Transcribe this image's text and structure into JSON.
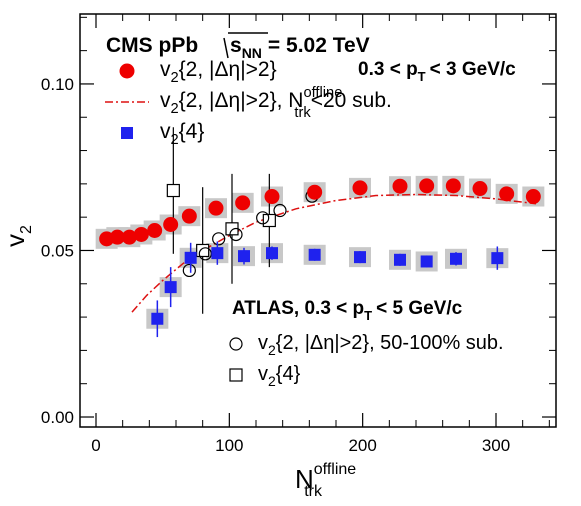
{
  "chart_data": {
    "type": "scatter",
    "title": "CMS pPb",
    "energy_label": "s",
    "energy_sub": "NN",
    "energy_value": "= 5.02 TeV",
    "pt_range_label": "0.3 < p",
    "pt_range_sub": "T",
    "pt_range_suffix": "< 3 GeV/c",
    "atlas_label": "ATLAS, 0.3 < p",
    "atlas_sub": "T",
    "atlas_suffix": "< 5 GeV/c",
    "xlabel": "N",
    "xlabel_sup": "offline",
    "xlabel_sub": "trk",
    "ylabel": "v",
    "ylabel_sub": "2",
    "xlim": [
      -12,
      345
    ],
    "ylim": [
      -0.003,
      0.121
    ],
    "x_ticks": [
      0,
      100,
      200,
      300
    ],
    "x_tick_labels": [
      "0",
      "100",
      "200",
      "300"
    ],
    "y_ticks": [
      0.0,
      0.05,
      0.1
    ],
    "y_tick_labels": [
      "0.00",
      "0.05",
      "0.10"
    ],
    "legend_cms": [
      {
        "marker": "circle-red",
        "text": "v",
        "sub": "2",
        "rest": "{2, |Δη|>2}"
      },
      {
        "marker": "dashdot-red",
        "text": "v",
        "sub": "2",
        "rest": "{2, |Δη|>2}, N",
        "rest_sup": "offline",
        "rest_sub": "trk",
        "rest_tail": "<20 sub."
      },
      {
        "marker": "square-blue",
        "text": "v",
        "sub": "2",
        "rest": "{4}"
      }
    ],
    "legend_atlas": [
      {
        "marker": "circle-open",
        "text": "v",
        "sub": "2",
        "rest": "{2, |Δη|>2}, 50-100% sub."
      },
      {
        "marker": "square-open",
        "text": "v",
        "sub": "2",
        "rest": "{4}"
      }
    ],
    "colors": {
      "cms_v22": "#ee0000",
      "cms_v24": "#1f22ee",
      "sys_box": "#c8c8c8",
      "sub_curve": "#dd1111"
    },
    "series": [
      {
        "name": "v2{2, |Δη|>2}",
        "marker": "circle-red",
        "points": [
          [
            8,
            0.0535
          ],
          [
            16,
            0.054
          ],
          [
            25,
            0.054
          ],
          [
            34,
            0.0548
          ],
          [
            44,
            0.056
          ],
          [
            56,
            0.0578
          ],
          [
            70,
            0.0603
          ],
          [
            90,
            0.0627
          ],
          [
            110,
            0.0643
          ],
          [
            132,
            0.0662
          ],
          [
            164,
            0.0675
          ],
          [
            198,
            0.0688
          ],
          [
            228,
            0.0693
          ],
          [
            248,
            0.0694
          ],
          [
            268,
            0.0694
          ],
          [
            288,
            0.0686
          ],
          [
            308,
            0.067
          ],
          [
            328,
            0.0662
          ]
        ]
      },
      {
        "name": "v2{4}",
        "marker": "square-blue",
        "points": [
          [
            46,
            0.0295,
            0.0055
          ],
          [
            56,
            0.039,
            0.006
          ],
          [
            71,
            0.0478,
            0.0045
          ],
          [
            91,
            0.0492,
            0.0035
          ],
          [
            111,
            0.0483,
            0.0025
          ],
          [
            132,
            0.0492,
            0.002
          ],
          [
            164,
            0.0487,
            0.0018
          ],
          [
            198,
            0.048,
            0.0018
          ],
          [
            228,
            0.0472,
            0.0018
          ],
          [
            248,
            0.0467,
            0.0018
          ],
          [
            270,
            0.0475,
            0.002
          ],
          [
            301,
            0.0477,
            0.0035
          ]
        ]
      },
      {
        "name": "ATLAS v2{2, |Δη|>2}, 50-100% sub.",
        "marker": "circle-open",
        "points": [
          [
            70,
            0.044
          ],
          [
            82,
            0.049
          ],
          [
            92,
            0.0535
          ],
          [
            105,
            0.0548
          ],
          [
            125,
            0.0598
          ],
          [
            138,
            0.062
          ],
          [
            162,
            0.0663
          ]
        ]
      },
      {
        "name": "ATLAS v2{4}",
        "marker": "square-open",
        "points": [
          [
            58,
            0.068,
            0.019
          ],
          [
            80,
            0.05,
            0.019
          ],
          [
            102,
            0.0565,
            0.0165
          ],
          [
            130,
            0.059,
            0.014
          ]
        ]
      },
      {
        "name": "v2{2, |Δη|>2}, Ntrk offline<20 sub.",
        "marker": "dashdot-red",
        "points": [
          [
            27,
            0.0315
          ],
          [
            38,
            0.0365
          ],
          [
            50,
            0.041
          ],
          [
            65,
            0.046
          ],
          [
            80,
            0.05
          ],
          [
            100,
            0.0545
          ],
          [
            120,
            0.0585
          ],
          [
            150,
            0.0625
          ],
          [
            180,
            0.065
          ],
          [
            210,
            0.0665
          ],
          [
            240,
            0.0668
          ],
          [
            270,
            0.0665
          ],
          [
            300,
            0.0655
          ],
          [
            330,
            0.064
          ]
        ]
      }
    ]
  }
}
